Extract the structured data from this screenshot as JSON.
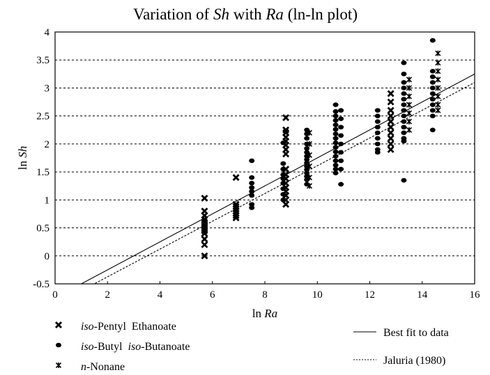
{
  "chart_data": {
    "type": "scatter",
    "title_parts": [
      "Variation of ",
      "Sh",
      " with ",
      "Ra",
      " (ln-ln plot)"
    ],
    "xlabel_parts": [
      "ln ",
      "Ra"
    ],
    "ylabel_parts": [
      "ln ",
      "Sh"
    ],
    "xlim": [
      0,
      16
    ],
    "ylim": [
      -0.5,
      4
    ],
    "xticks": [
      "0",
      "2",
      "4",
      "6",
      "8",
      "10",
      "12",
      "14",
      "16"
    ],
    "yticks": [
      "-0.5",
      "0",
      "0.5",
      "1",
      "1.5",
      "2",
      "2.5",
      "3",
      "3.5",
      "4"
    ],
    "grid": "horizontal dashed",
    "series": [
      {
        "name_prefix": "iso",
        "name_rest": "-Pentyl  Ethanoate",
        "marker": "x-bold",
        "clusters": [
          {
            "x": 5.7,
            "y": [
              1.03,
              0.8,
              0.72,
              0.65,
              0.6,
              0.55,
              0.5,
              0.45,
              0.4,
              0.3,
              0.2,
              0.0
            ]
          },
          {
            "x": 6.9,
            "y": [
              1.4,
              0.92,
              0.88,
              0.84,
              0.8,
              0.76,
              0.72,
              0.68
            ]
          },
          {
            "x": 8.8,
            "y": [
              2.47,
              2.25,
              2.2,
              2.12,
              2.05,
              1.98,
              1.9,
              1.82,
              1.55,
              1.45,
              1.38,
              1.3,
              1.22,
              1.15,
              1.08,
              1.0,
              0.92
            ]
          },
          {
            "x": 12.8,
            "y": [
              2.9,
              2.75,
              2.6,
              2.5,
              2.4,
              2.3,
              2.2,
              2.1,
              2.0,
              1.9
            ]
          }
        ]
      },
      {
        "name_prefix": "iso",
        "name_rest": "-Butyl  ",
        "name_prefix2": "iso",
        "name_rest2": "-Butanoate",
        "marker": "dot",
        "clusters": [
          {
            "x": 7.5,
            "y": [
              1.7,
              1.4,
              1.3,
              1.22,
              1.15,
              1.08,
              0.92,
              0.86
            ]
          },
          {
            "x": 8.7,
            "y": [
              2.02,
              1.65,
              1.55,
              1.45,
              1.38,
              1.3,
              1.2,
              1.1,
              1.0
            ]
          },
          {
            "x": 9.6,
            "y": [
              2.25,
              2.18,
              2.1,
              2.0,
              1.92,
              1.85,
              1.78,
              1.72,
              1.66,
              1.6,
              1.54,
              1.48,
              1.42,
              1.36,
              1.28
            ]
          },
          {
            "x": 10.7,
            "y": [
              2.7,
              2.58,
              2.5,
              2.42,
              2.34,
              2.26,
              2.18,
              2.1,
              2.02,
              1.94,
              1.86,
              1.78,
              1.7,
              1.62,
              1.55,
              1.48
            ]
          },
          {
            "x": 10.9,
            "y": [
              2.6,
              2.45,
              2.3,
              2.15,
              2.0,
              1.85,
              1.7,
              1.55,
              1.28
            ]
          },
          {
            "x": 12.3,
            "y": [
              2.6,
              2.5,
              2.4,
              2.3,
              2.2,
              2.1,
              2.0,
              1.9,
              1.85
            ]
          },
          {
            "x": 13.3,
            "y": [
              3.45,
              3.25,
              3.1,
              3.0,
              2.9,
              2.8,
              2.7,
              2.6,
              2.5,
              2.4,
              2.3,
              2.2,
              2.1,
              2.05,
              1.35
            ]
          },
          {
            "x": 14.4,
            "y": [
              3.85,
              3.3,
              3.2,
              3.1,
              3.0,
              2.9,
              2.8,
              2.7,
              2.6,
              2.5,
              2.25
            ]
          }
        ]
      },
      {
        "name_prefix": "n",
        "name_rest": "-Nonane",
        "marker": "asterisk",
        "clusters": [
          {
            "x": 9.7,
            "y": [
              2.2,
              2.0,
              1.8,
              1.6,
              1.4,
              1.25
            ]
          },
          {
            "x": 13.5,
            "y": [
              3.15,
              3.0,
              2.85,
              2.7,
              2.55,
              2.4,
              2.25
            ]
          },
          {
            "x": 14.6,
            "y": [
              3.62,
              3.45,
              3.3,
              3.15,
              3.0,
              2.85,
              2.7,
              2.6
            ]
          }
        ]
      }
    ],
    "lines": [
      {
        "name": "Best fit to data",
        "style": "solid",
        "slope": 0.25,
        "intercept": -0.75
      },
      {
        "name": "Jaluria (1980)",
        "style": "dotted",
        "slope": 0.248,
        "intercept": -0.87
      }
    ]
  }
}
